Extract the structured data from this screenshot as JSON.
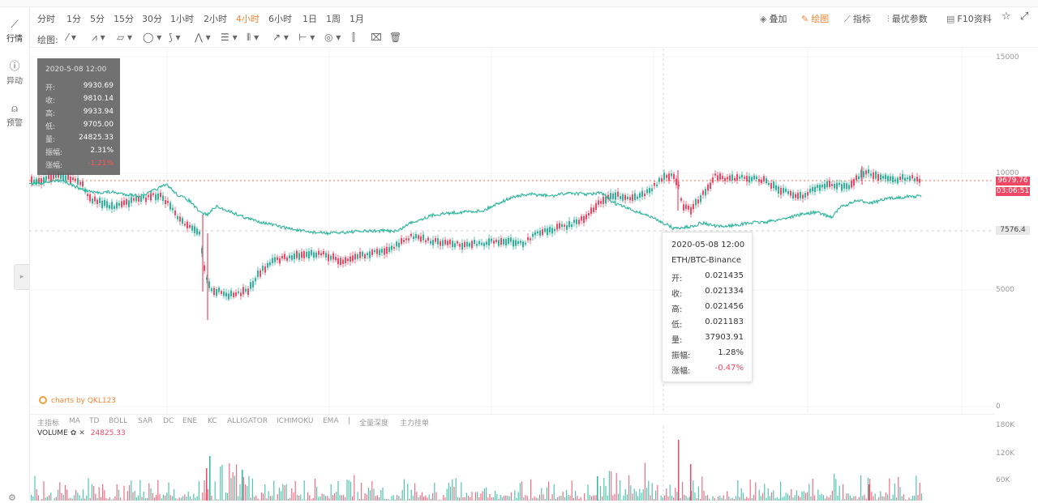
{
  "colors": {
    "up": "#2bb59b",
    "down": "#f04864",
    "accent": "#f08434",
    "ref_line": "#f27258",
    "ohlc_bg": "#5a5a5a"
  },
  "sidebar": {
    "items": [
      {
        "label": "行情",
        "icon": "line-chart-icon"
      },
      {
        "label": "异动",
        "icon": "alert-icon"
      },
      {
        "label": "预警",
        "icon": "bell-icon"
      }
    ],
    "toggle_icon": "▸",
    "settings_icon": "⚙"
  },
  "timeframes": [
    "分时",
    "1分",
    "5分",
    "15分",
    "30分",
    "1小时",
    "2小时",
    "4小时",
    "6小时",
    "1日",
    "1周",
    "1月"
  ],
  "active_timeframe": "4小时",
  "toolbar_right": [
    {
      "label": "叠加",
      "icon": "layers-icon",
      "glyph": "◈"
    },
    {
      "label": "绘图",
      "icon": "pen-icon",
      "glyph": "✎"
    },
    {
      "label": "指标",
      "icon": "indicator-icon",
      "glyph": "⟋"
    },
    {
      "label": "最优参数",
      "icon": "params-icon",
      "glyph": "⫶"
    },
    {
      "label": "F10资料",
      "icon": "document-icon",
      "glyph": "▤"
    }
  ],
  "toolbar_right_icons": {
    "star": "☆",
    "fullscreen": "⤢"
  },
  "drawing": {
    "label": "绘图:",
    "tools": [
      {
        "name": "line-tool-icon",
        "glyph": "⁄ ▾"
      },
      {
        "name": "multi-line-tool-icon",
        "glyph": "⩘ ▾"
      },
      {
        "name": "channel-tool-icon",
        "glyph": "▱ ▾"
      },
      {
        "name": "circle-tool-icon",
        "glyph": "◯ ▾"
      },
      {
        "name": "zigzag-tool-icon",
        "glyph": "⟆ ▾"
      },
      {
        "name": "pattern-tool-icon",
        "glyph": "⋀ ▾"
      },
      {
        "name": "fib-tool-icon",
        "glyph": "☰ ▾"
      },
      {
        "name": "gann-tool-icon",
        "glyph": "⦀ ▾"
      },
      {
        "name": "arrow-tool-icon",
        "glyph": "↗ ▾"
      },
      {
        "name": "range-tool-icon",
        "glyph": "⊢ ▾"
      },
      {
        "name": "note-tool-icon",
        "glyph": "◎ ▾"
      },
      {
        "name": "bar-pattern-icon",
        "glyph": "⫿"
      },
      {
        "name": "lock-drawings-icon",
        "glyph": "⌧"
      },
      {
        "name": "trash-icon",
        "glyph": "🗑"
      }
    ]
  },
  "y_axis": [
    "15000",
    "10000",
    "5000",
    "0"
  ],
  "price_tags": {
    "current": "9679.76",
    "countdown": "03:06:51",
    "overlay": "7576.4"
  },
  "ohlc_box": {
    "date": "2020-5-08 12:00",
    "rows": [
      {
        "k": "开:",
        "v": "9930.69"
      },
      {
        "k": "收:",
        "v": "9810.14"
      },
      {
        "k": "高:",
        "v": "9933.94"
      },
      {
        "k": "低:",
        "v": "9705.00"
      },
      {
        "k": "量:",
        "v": "24825.33"
      },
      {
        "k": "振幅:",
        "v": "2.31%"
      },
      {
        "k": "涨幅:",
        "v": "-1.21%"
      }
    ]
  },
  "tooltip": {
    "date": "2020-05-08 12:00",
    "pair": "ETH/BTC-Binance",
    "rows": [
      {
        "k": "开:",
        "v": "0.021435"
      },
      {
        "k": "收:",
        "v": "0.021334"
      },
      {
        "k": "高:",
        "v": "0.021456"
      },
      {
        "k": "低:",
        "v": "0.021183"
      },
      {
        "k": "量:",
        "v": "37903.91"
      },
      {
        "k": "振幅:",
        "v": "1.28%"
      },
      {
        "k": "涨幅:",
        "v": "-0.47%"
      }
    ]
  },
  "brand": "charts by QKL123",
  "indicators": [
    "主指标",
    "MA",
    "TD",
    "BOLL",
    "SAR",
    "DC",
    "ENE",
    "KC",
    "ALLIGATOR",
    "ICHIMOKU",
    "EMA",
    "|",
    "全量深度",
    "主力挂单"
  ],
  "volume": {
    "label": "VOLUME",
    "value": "24825.33",
    "axis": [
      "180K",
      "120K",
      "60K"
    ]
  }
}
